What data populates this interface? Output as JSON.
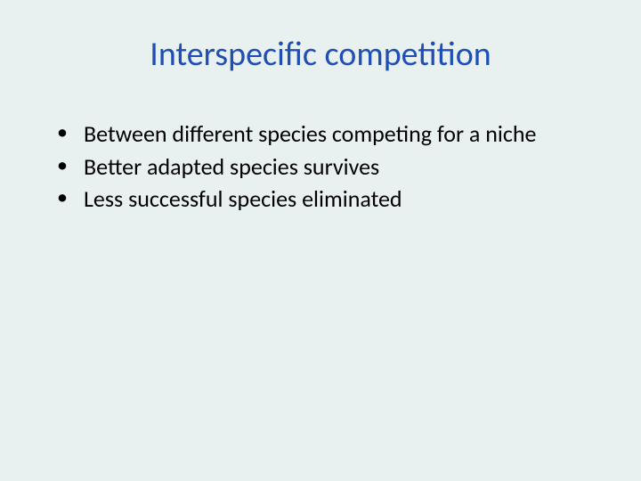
{
  "slide": {
    "title": "Interspecific competition",
    "title_color": "#1f4fb5",
    "bullets": [
      "Between different species competing for a niche",
      "Better adapted species survives",
      "Less successful species eliminated"
    ],
    "bullet_color": "#000000",
    "background_color": "#e8f0f0",
    "title_fontsize": 38,
    "bullet_fontsize": 26,
    "font_family": "Calibri"
  }
}
